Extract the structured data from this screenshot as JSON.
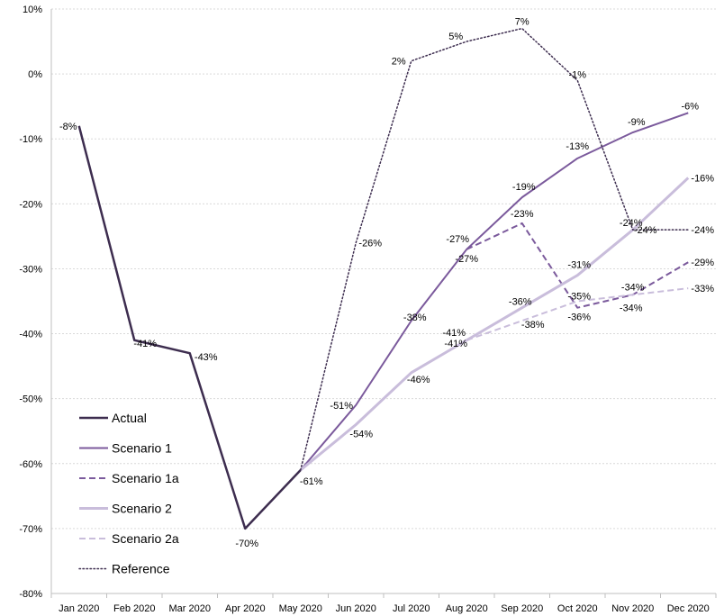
{
  "chart_data": {
    "type": "line",
    "categories": [
      "Jan 2020",
      "Feb 2020",
      "Mar 2020",
      "Apr 2020",
      "May 2020",
      "Jun 2020",
      "Jul 2020",
      "Aug 2020",
      "Sep 2020",
      "Oct 2020",
      "Nov 2020",
      "Dec 2020"
    ],
    "ylim": [
      -80,
      10
    ],
    "yticks": [
      10,
      0,
      -10,
      -20,
      -30,
      -40,
      -50,
      -60,
      -70,
      -80
    ],
    "ytick_labels": [
      "10%",
      "0%",
      "-10%",
      "-20%",
      "-30%",
      "-40%",
      "-50%",
      "-60%",
      "-70%",
      "-80%"
    ],
    "grid": true,
    "legend_position": "bottom-left",
    "series": [
      {
        "name": "Actual",
        "color": "#3d2d4f",
        "dash": "solid",
        "width": 2.5,
        "values": [
          -8,
          -41,
          -43,
          -70,
          -61,
          null,
          null,
          null,
          null,
          null,
          null,
          null
        ],
        "labels": [
          "-8%",
          "-41%",
          "-43%",
          "-70%",
          "-61%",
          null,
          null,
          null,
          null,
          null,
          null,
          null
        ]
      },
      {
        "name": "Scenario 1",
        "color": "#7b5a9c",
        "dash": "solid",
        "width": 2,
        "values": [
          null,
          null,
          null,
          null,
          -61,
          -51,
          -38,
          -27,
          -19,
          -13,
          -9,
          -6
        ],
        "labels": [
          null,
          null,
          null,
          null,
          null,
          "-51%",
          "-38%",
          "-27%",
          "-19%",
          "-13%",
          "-9%",
          "-6%"
        ]
      },
      {
        "name": "Scenario 1a",
        "color": "#7b5a9c",
        "dash": "dashed",
        "width": 2,
        "values": [
          null,
          null,
          null,
          null,
          null,
          null,
          null,
          -27,
          -23,
          -36,
          -34,
          -29
        ],
        "labels": [
          null,
          null,
          null,
          null,
          null,
          null,
          null,
          "-27%",
          "-23%",
          "-36%",
          "-34%",
          "-29%"
        ]
      },
      {
        "name": "Scenario 2",
        "color": "#c9bddb",
        "dash": "solid",
        "width": 3,
        "values": [
          null,
          null,
          null,
          null,
          -61,
          -54,
          -46,
          -41,
          -36,
          -31,
          -24,
          -16
        ],
        "labels": [
          null,
          null,
          null,
          null,
          null,
          "-54%",
          "-46%",
          "-41%",
          "-36%",
          "-31%",
          "-24%",
          "-16%"
        ]
      },
      {
        "name": "Scenario 2a",
        "color": "#c9bddb",
        "dash": "dashed",
        "width": 2,
        "values": [
          null,
          null,
          null,
          null,
          null,
          null,
          null,
          -41,
          -38,
          -35,
          -34,
          -33
        ],
        "labels": [
          null,
          null,
          null,
          null,
          null,
          null,
          null,
          "-41%",
          "-38%",
          "-35%",
          "-34%",
          "-33%"
        ]
      },
      {
        "name": "Reference",
        "color": "#3d2d4f",
        "dash": "dotted",
        "width": 1.5,
        "values": [
          null,
          null,
          null,
          null,
          -61,
          -26,
          2,
          5,
          7,
          -1,
          -24,
          -24
        ],
        "labels": [
          null,
          null,
          null,
          null,
          null,
          "-26%",
          "2%",
          "5%",
          "7%",
          "-1%",
          "-24%",
          "-24%"
        ]
      }
    ]
  }
}
